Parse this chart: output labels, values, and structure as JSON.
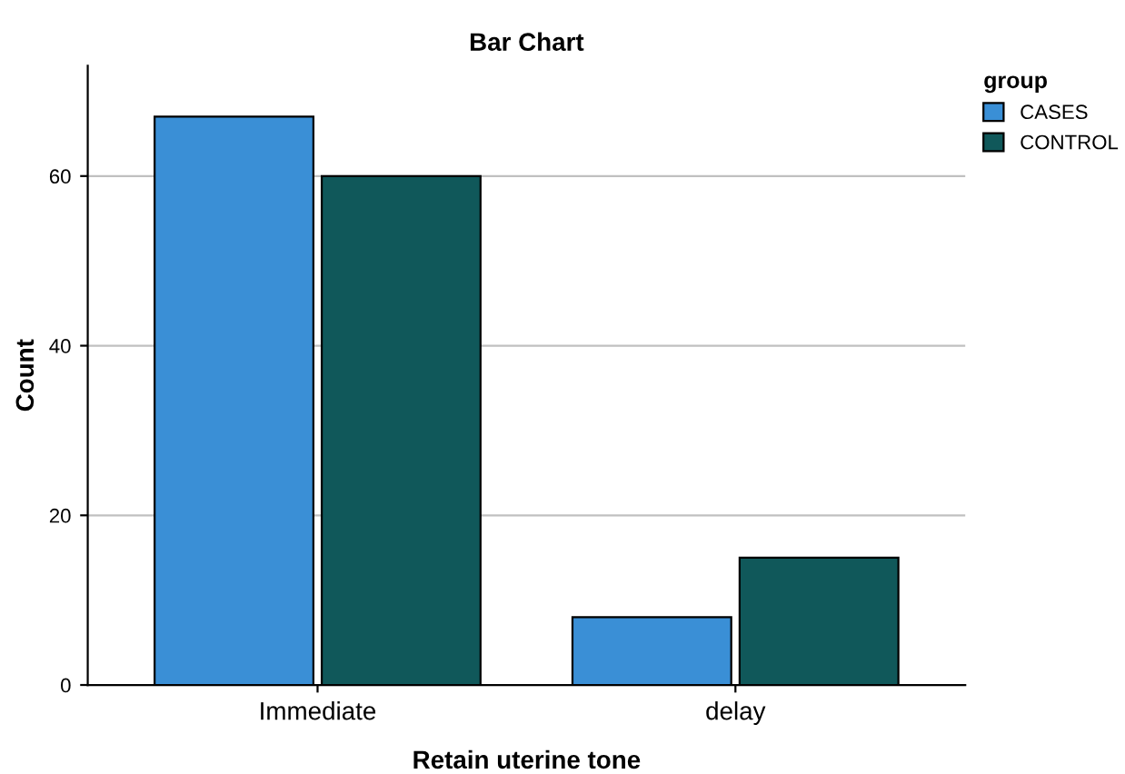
{
  "chart_data": {
    "type": "bar",
    "title": "Bar Chart",
    "xlabel": "Retain uterine tone",
    "ylabel": "Count",
    "legend_title": "group",
    "categories": [
      "Immediate",
      "delay"
    ],
    "series": [
      {
        "name": "CASES",
        "color": "#3a8fd6",
        "values": [
          67,
          8
        ]
      },
      {
        "name": "CONTROL",
        "color": "#10585a",
        "values": [
          60,
          15
        ]
      }
    ],
    "ylim": [
      0,
      73
    ],
    "yticks": [
      0,
      20,
      40,
      60
    ],
    "grid": "y",
    "legend": "top right"
  }
}
